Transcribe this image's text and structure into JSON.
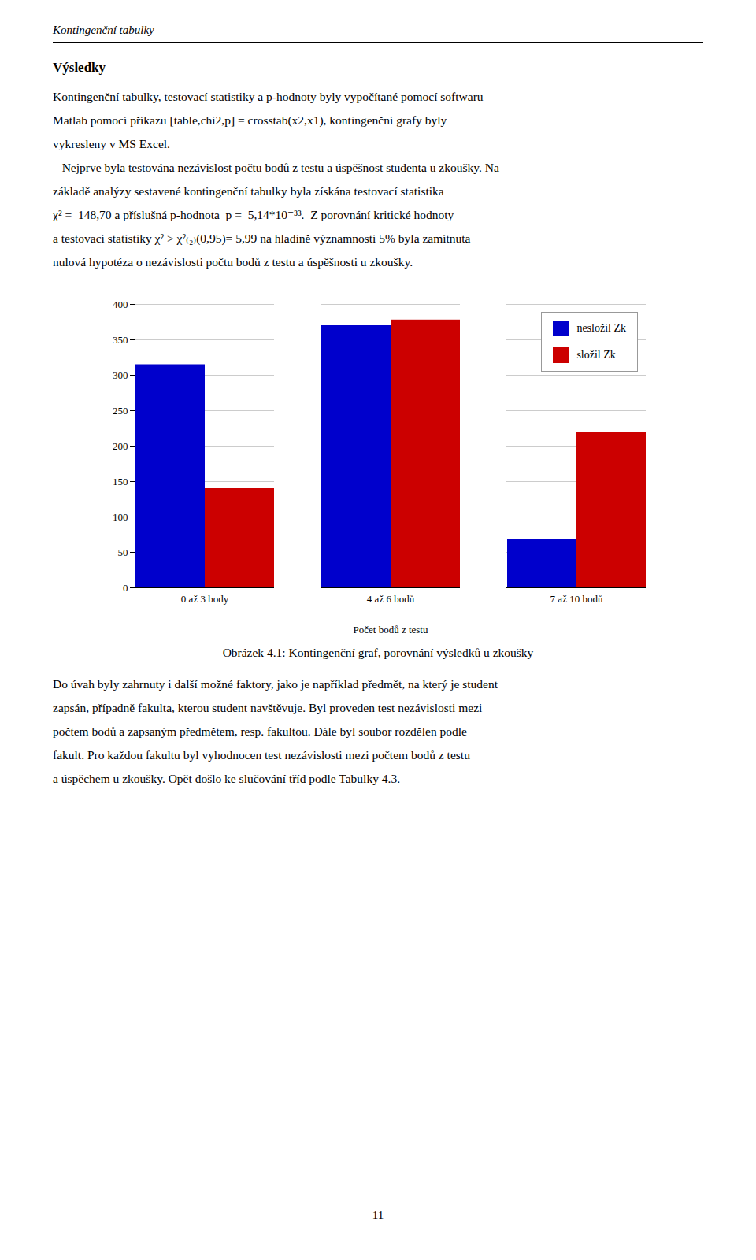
{
  "chart_data": {
    "type": "bar",
    "categories": [
      "0 až 3 body",
      "4 až 6 bodů",
      "7 až 10 bodů"
    ],
    "series": [
      {
        "name": "nesložil Zk",
        "color": "#0000CC",
        "values": [
          315,
          370,
          68
        ]
      },
      {
        "name": "složil Zk",
        "color": "#CC0000",
        "values": [
          140,
          378,
          220
        ]
      }
    ],
    "xlabel": "Počet bodů z testu",
    "caption": "Obrázek 4.1: Kontingenční graf, porovnání výsledků u zkoušky",
    "ylim": [
      0,
      400
    ],
    "yticks": [
      0,
      50,
      100,
      150,
      200,
      250,
      300,
      350,
      400
    ],
    "grid": true,
    "legend": "upper right"
  },
  "header": "Kontingenční tabulky",
  "heading": "Výsledky",
  "body": [
    "Kontingenční tabulky, testovací statistiky a p-hodnoty byly vypočítané pomocí softwaru",
    "Matlab pomocí příkazu [table,chi2,p] = crosstab(x2,x1), kontingenční grafy byly",
    "vykresleny v MS Excel.",
    "   Nejprve byla testována nezávislost počtu bodů z testu a úspěšnost studenta u zkoušky. Na",
    "základě analýzy sestavené kontingenční tabulky byla získána testovací statistika",
    "χ² =  148,70 a příslušná p-hodnota  p =  5,14*10⁻³³.  Z porovnání kritické hodnoty",
    "a testovací statistiky χ² > χ²₍₂₎(0,95)= 5,99 na hladině významnosti 5% byla zamítnuta",
    "nulová hypotéza o nezávislosti počtu bodů z testu a úspěšnosti u zkoušky."
  ],
  "footer": [
    "Do úvah byly zahrnuty i další možné faktory, jako je například předmět, na který je student",
    "zapsán, případně fakulta, kterou student navštěvuje. Byl proveden test nezávislosti mezi",
    "počtem bodů a zapsaným předmětem, resp. fakultou. Dále byl soubor rozdělen podle",
    "fakult. Pro každou fakultu byl vyhodnocen test nezávislosti mezi počtem bodů z testu",
    "a úspěchem u zkoušky. Opět došlo ke slučování tříd podle Tabulky 4.3."
  ],
  "page_number": "11"
}
